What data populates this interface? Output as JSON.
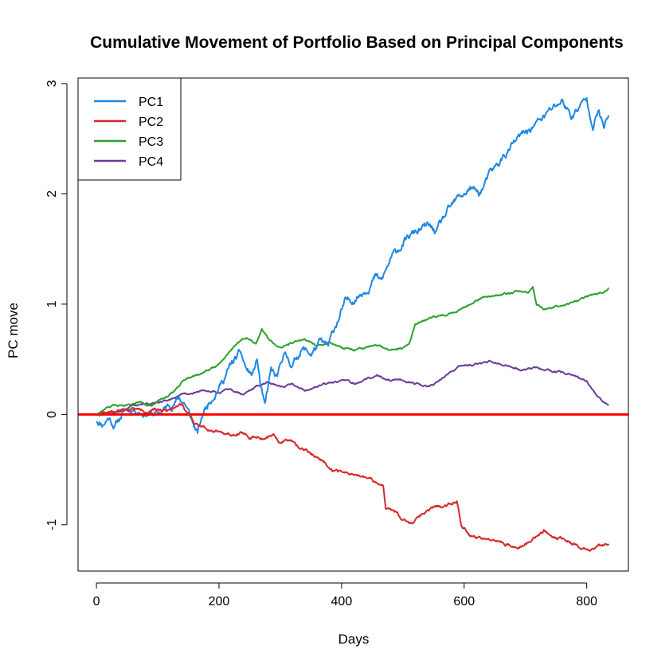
{
  "chart_data": {
    "type": "line",
    "title": "Cumulative Movement of Portfolio Based on Principal Components",
    "xlabel": "Days",
    "ylabel": "PC move",
    "xlim": [
      -30,
      868
    ],
    "ylim": [
      -1.42,
      3.05
    ],
    "x_ticks": [
      0,
      200,
      400,
      600,
      800
    ],
    "y_ticks": [
      -1,
      0,
      1,
      2,
      3
    ],
    "grid": false,
    "legend_position": "top-left",
    "reference_line": {
      "y": 0,
      "color": "#FF0000"
    },
    "series": [
      {
        "name": "PC1",
        "color": "#1E88E5",
        "anchors": [
          [
            0,
            -0.05
          ],
          [
            10,
            -0.08
          ],
          [
            20,
            -0.02
          ],
          [
            30,
            -0.1
          ],
          [
            45,
            0.03
          ],
          [
            60,
            0.06
          ],
          [
            80,
            0.02
          ],
          [
            100,
            0.0
          ],
          [
            120,
            0.08
          ],
          [
            135,
            0.15
          ],
          [
            145,
            0.1
          ],
          [
            155,
            -0.05
          ],
          [
            165,
            -0.18
          ],
          [
            175,
            0.02
          ],
          [
            190,
            0.18
          ],
          [
            205,
            0.3
          ],
          [
            220,
            0.45
          ],
          [
            235,
            0.55
          ],
          [
            245,
            0.4
          ],
          [
            255,
            0.35
          ],
          [
            262,
            0.5
          ],
          [
            268,
            0.25
          ],
          [
            275,
            0.05
          ],
          [
            285,
            0.4
          ],
          [
            295,
            0.3
          ],
          [
            305,
            0.55
          ],
          [
            320,
            0.45
          ],
          [
            335,
            0.6
          ],
          [
            350,
            0.55
          ],
          [
            365,
            0.65
          ],
          [
            378,
            0.6
          ],
          [
            390,
            0.8
          ],
          [
            405,
            1.0
          ],
          [
            420,
            1.05
          ],
          [
            440,
            1.15
          ],
          [
            455,
            1.25
          ],
          [
            465,
            1.2
          ],
          [
            480,
            1.4
          ],
          [
            500,
            1.55
          ],
          [
            520,
            1.65
          ],
          [
            540,
            1.7
          ],
          [
            555,
            1.65
          ],
          [
            570,
            1.8
          ],
          [
            590,
            1.95
          ],
          [
            610,
            2.05
          ],
          [
            625,
            2.0
          ],
          [
            640,
            2.15
          ],
          [
            660,
            2.3
          ],
          [
            680,
            2.45
          ],
          [
            700,
            2.55
          ],
          [
            720,
            2.65
          ],
          [
            740,
            2.75
          ],
          [
            760,
            2.85
          ],
          [
            775,
            2.7
          ],
          [
            790,
            2.8
          ],
          [
            800,
            2.85
          ],
          [
            810,
            2.65
          ],
          [
            820,
            2.75
          ],
          [
            828,
            2.6
          ],
          [
            836,
            2.7
          ]
        ],
        "seed": 11,
        "noise": 0.045
      },
      {
        "name": "PC2",
        "color": "#D62728",
        "anchors": [
          [
            0,
            0.0
          ],
          [
            30,
            0.02
          ],
          [
            60,
            0.05
          ],
          [
            90,
            0.03
          ],
          [
            120,
            0.05
          ],
          [
            140,
            0.1
          ],
          [
            150,
            0.0
          ],
          [
            160,
            -0.08
          ],
          [
            180,
            -0.12
          ],
          [
            200,
            -0.15
          ],
          [
            220,
            -0.18
          ],
          [
            235,
            -0.15
          ],
          [
            250,
            -0.2
          ],
          [
            270,
            -0.22
          ],
          [
            290,
            -0.2
          ],
          [
            300,
            -0.25
          ],
          [
            310,
            -0.22
          ],
          [
            330,
            -0.3
          ],
          [
            350,
            -0.35
          ],
          [
            370,
            -0.42
          ],
          [
            385,
            -0.5
          ],
          [
            400,
            -0.52
          ],
          [
            420,
            -0.55
          ],
          [
            440,
            -0.58
          ],
          [
            460,
            -0.62
          ],
          [
            468,
            -0.65
          ],
          [
            472,
            -0.85
          ],
          [
            485,
            -0.88
          ],
          [
            500,
            -0.95
          ],
          [
            515,
            -0.98
          ],
          [
            530,
            -0.92
          ],
          [
            550,
            -0.85
          ],
          [
            570,
            -0.82
          ],
          [
            588,
            -0.78
          ],
          [
            595,
            -1.0
          ],
          [
            610,
            -1.1
          ],
          [
            630,
            -1.15
          ],
          [
            650,
            -1.15
          ],
          [
            670,
            -1.18
          ],
          [
            690,
            -1.2
          ],
          [
            710,
            -1.15
          ],
          [
            730,
            -1.05
          ],
          [
            750,
            -1.12
          ],
          [
            770,
            -1.15
          ],
          [
            790,
            -1.2
          ],
          [
            805,
            -1.22
          ],
          [
            820,
            -1.18
          ],
          [
            836,
            -1.18
          ]
        ],
        "seed": 22,
        "noise": 0.018
      },
      {
        "name": "PC3",
        "color": "#2CA02C",
        "anchors": [
          [
            0,
            0.0
          ],
          [
            15,
            0.05
          ],
          [
            30,
            0.08
          ],
          [
            50,
            0.1
          ],
          [
            70,
            0.12
          ],
          [
            90,
            0.08
          ],
          [
            110,
            0.15
          ],
          [
            125,
            0.2
          ],
          [
            140,
            0.3
          ],
          [
            160,
            0.35
          ],
          [
            180,
            0.4
          ],
          [
            200,
            0.45
          ],
          [
            215,
            0.55
          ],
          [
            230,
            0.65
          ],
          [
            245,
            0.7
          ],
          [
            260,
            0.65
          ],
          [
            270,
            0.78
          ],
          [
            280,
            0.7
          ],
          [
            300,
            0.6
          ],
          [
            320,
            0.65
          ],
          [
            340,
            0.68
          ],
          [
            360,
            0.62
          ],
          [
            380,
            0.65
          ],
          [
            400,
            0.6
          ],
          [
            420,
            0.58
          ],
          [
            440,
            0.6
          ],
          [
            460,
            0.62
          ],
          [
            480,
            0.58
          ],
          [
            500,
            0.6
          ],
          [
            510,
            0.65
          ],
          [
            520,
            0.82
          ],
          [
            535,
            0.85
          ],
          [
            550,
            0.88
          ],
          [
            570,
            0.9
          ],
          [
            590,
            0.95
          ],
          [
            610,
            1.0
          ],
          [
            630,
            1.05
          ],
          [
            650,
            1.08
          ],
          [
            670,
            1.1
          ],
          [
            690,
            1.12
          ],
          [
            705,
            1.1
          ],
          [
            712,
            1.15
          ],
          [
            718,
            1.0
          ],
          [
            730,
            0.95
          ],
          [
            750,
            0.98
          ],
          [
            770,
            1.0
          ],
          [
            790,
            1.05
          ],
          [
            810,
            1.08
          ],
          [
            825,
            1.1
          ],
          [
            836,
            1.15
          ]
        ],
        "seed": 33,
        "noise": 0.012
      },
      {
        "name": "PC4",
        "color": "#6A3D9A",
        "anchors": [
          [
            0,
            0.0
          ],
          [
            30,
            0.02
          ],
          [
            60,
            0.08
          ],
          [
            90,
            0.1
          ],
          [
            120,
            0.12
          ],
          [
            140,
            0.18
          ],
          [
            160,
            0.2
          ],
          [
            180,
            0.22
          ],
          [
            200,
            0.2
          ],
          [
            220,
            0.22
          ],
          [
            240,
            0.18
          ],
          [
            260,
            0.25
          ],
          [
            280,
            0.3
          ],
          [
            300,
            0.25
          ],
          [
            320,
            0.28
          ],
          [
            340,
            0.22
          ],
          [
            360,
            0.25
          ],
          [
            380,
            0.28
          ],
          [
            400,
            0.3
          ],
          [
            420,
            0.28
          ],
          [
            440,
            0.32
          ],
          [
            460,
            0.35
          ],
          [
            480,
            0.3
          ],
          [
            500,
            0.32
          ],
          [
            520,
            0.28
          ],
          [
            540,
            0.25
          ],
          [
            560,
            0.3
          ],
          [
            580,
            0.4
          ],
          [
            600,
            0.45
          ],
          [
            620,
            0.45
          ],
          [
            640,
            0.48
          ],
          [
            660,
            0.45
          ],
          [
            680,
            0.42
          ],
          [
            700,
            0.4
          ],
          [
            720,
            0.42
          ],
          [
            740,
            0.4
          ],
          [
            760,
            0.38
          ],
          [
            780,
            0.35
          ],
          [
            800,
            0.3
          ],
          [
            812,
            0.2
          ],
          [
            825,
            0.12
          ],
          [
            836,
            0.1
          ]
        ],
        "seed": 44,
        "noise": 0.012
      }
    ]
  }
}
